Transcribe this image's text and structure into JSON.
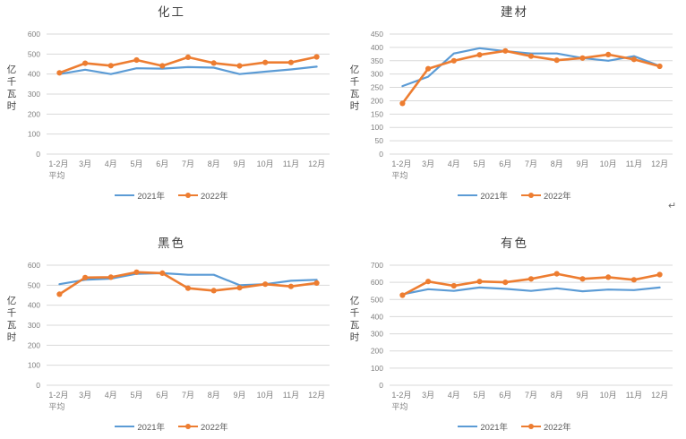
{
  "page": {
    "background": "#ffffff",
    "paragraph_mark": "↵"
  },
  "colors": {
    "series_2021": "#5B9BD5",
    "series_2022": "#ED7D31",
    "gridline": "#D9D9D9",
    "tick_label": "#7F7F7F",
    "title_text": "#404040",
    "legend_text": "#595959"
  },
  "chart_data": [
    {
      "type": "line",
      "title": "化工",
      "ylabel": "亿千瓦时",
      "xlabel": "",
      "ylim": [
        0,
        600
      ],
      "ystep": 100,
      "grid": true,
      "legend_position": "bottom",
      "categories": [
        "1-2月",
        "3月",
        "4月",
        "5月",
        "6月",
        "7月",
        "8月",
        "9月",
        "10月",
        "11月",
        "12月"
      ],
      "first_category_line2": "平均",
      "series": [
        {
          "name": "2021年",
          "color": "#5B9BD5",
          "marker": "none",
          "values": [
            400,
            422,
            400,
            429,
            427,
            435,
            432,
            400,
            412,
            423,
            437
          ]
        },
        {
          "name": "2022年",
          "color": "#ED7D31",
          "marker": "circle",
          "values": [
            406,
            454,
            442,
            470,
            441,
            484,
            455,
            441,
            458,
            458,
            486
          ]
        }
      ]
    },
    {
      "type": "line",
      "title": "建材",
      "ylabel": "亿千瓦时",
      "xlabel": "",
      "ylim": [
        0,
        450
      ],
      "ystep": 50,
      "grid": true,
      "legend_position": "bottom",
      "categories": [
        "1-2月",
        "3月",
        "4月",
        "5月",
        "6月",
        "7月",
        "8月",
        "9月",
        "10月",
        "11月",
        "12月"
      ],
      "first_category_line2": "平均",
      "series": [
        {
          "name": "2021年",
          "color": "#5B9BD5",
          "marker": "none",
          "values": [
            255,
            290,
            377,
            397,
            386,
            377,
            377,
            360,
            350,
            367,
            330
          ]
        },
        {
          "name": "2022年",
          "color": "#ED7D31",
          "marker": "circle",
          "values": [
            190,
            320,
            350,
            372,
            387,
            367,
            352,
            360,
            373,
            355,
            329
          ]
        }
      ]
    },
    {
      "type": "line",
      "title": "黑色",
      "ylabel": "亿千瓦时",
      "xlabel": "",
      "ylim": [
        0,
        600
      ],
      "ystep": 100,
      "grid": true,
      "legend_position": "bottom",
      "categories": [
        "1-2月",
        "3月",
        "4月",
        "5月",
        "6月",
        "7月",
        "8月",
        "9月",
        "10月",
        "11月",
        "12月"
      ],
      "first_category_line2": "平均",
      "series": [
        {
          "name": "2021年",
          "color": "#5B9BD5",
          "marker": "none",
          "values": [
            505,
            527,
            533,
            557,
            560,
            552,
            552,
            500,
            505,
            522,
            527
          ]
        },
        {
          "name": "2022年",
          "color": "#ED7D31",
          "marker": "circle",
          "values": [
            455,
            538,
            540,
            565,
            560,
            485,
            473,
            487,
            505,
            494,
            511
          ]
        }
      ]
    },
    {
      "type": "line",
      "title": "有色",
      "ylabel": "亿千瓦时",
      "xlabel": "",
      "ylim": [
        0,
        700
      ],
      "ystep": 100,
      "grid": true,
      "legend_position": "bottom",
      "categories": [
        "1-2月",
        "3月",
        "4月",
        "5月",
        "6月",
        "7月",
        "8月",
        "9月",
        "10月",
        "11月",
        "12月"
      ],
      "first_category_line2": "平均",
      "series": [
        {
          "name": "2021年",
          "color": "#5B9BD5",
          "marker": "none",
          "values": [
            530,
            560,
            550,
            570,
            562,
            550,
            565,
            548,
            558,
            555,
            570
          ]
        },
        {
          "name": "2022年",
          "color": "#ED7D31",
          "marker": "circle",
          "values": [
            525,
            605,
            580,
            605,
            600,
            620,
            650,
            620,
            630,
            615,
            645
          ]
        }
      ]
    }
  ]
}
